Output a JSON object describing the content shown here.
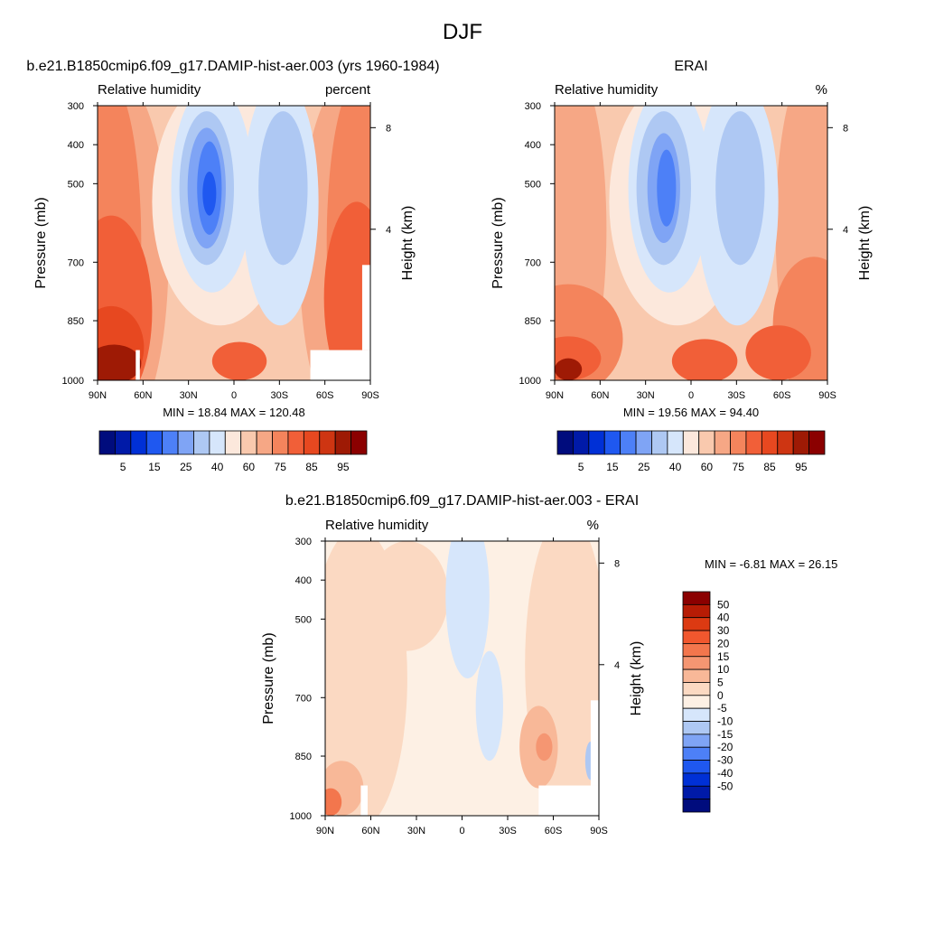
{
  "figure": {
    "title": "DJF"
  },
  "chart_data": [
    {
      "type": "heatmap",
      "title": "b.e21.B1850cmip6.f09_g17.DAMIP-hist-aer.003 (yrs 1960-1984)",
      "left_label": "Relative humidity",
      "right_label": "percent",
      "ylabel": "Pressure (mb)",
      "y2label": "Height (km)",
      "x_ticks": [
        "90N",
        "60N",
        "30N",
        "0",
        "30S",
        "60S",
        "90S"
      ],
      "y_ticks": [
        "300",
        "400",
        "500",
        "700",
        "850",
        "1000"
      ],
      "y2_ticks": [
        "8",
        "4"
      ],
      "stats": "MIN =  18.84  MAX = 120.48",
      "colorbar": {
        "orientation": "horizontal",
        "labels": [
          "5",
          "15",
          "25",
          "40",
          "60",
          "75",
          "85",
          "95"
        ],
        "colors": [
          "#000c7d",
          "#001aa8",
          "#0030d6",
          "#1f58f0",
          "#4d80f7",
          "#7fa4f5",
          "#aec8f3",
          "#d6e6fb",
          "#fce8dc",
          "#f9c9ae",
          "#f6a785",
          "#f4845c",
          "#f15f38",
          "#e74820",
          "#ce3512",
          "#9e1a05",
          "#8b0000"
        ]
      },
      "missing_data": true
    },
    {
      "type": "heatmap",
      "title": "ERAI",
      "left_label": "Relative humidity",
      "right_label": "%",
      "ylabel": "Pressure (mb)",
      "y2label": "Height (km)",
      "x_ticks": [
        "90N",
        "60N",
        "30N",
        "0",
        "30S",
        "60S",
        "90S"
      ],
      "y_ticks": [
        "300",
        "400",
        "500",
        "700",
        "850",
        "1000"
      ],
      "y2_ticks": [
        "8",
        "4"
      ],
      "stats": "MIN =  19.56  MAX =  94.40",
      "colorbar": {
        "orientation": "horizontal",
        "labels": [
          "5",
          "15",
          "25",
          "40",
          "60",
          "75",
          "85",
          "95"
        ],
        "colors": [
          "#000c7d",
          "#001aa8",
          "#0030d6",
          "#1f58f0",
          "#4d80f7",
          "#7fa4f5",
          "#aec8f3",
          "#d6e6fb",
          "#fce8dc",
          "#f9c9ae",
          "#f6a785",
          "#f4845c",
          "#f15f38",
          "#e74820",
          "#ce3512",
          "#9e1a05",
          "#8b0000"
        ]
      },
      "missing_data": false
    },
    {
      "type": "heatmap",
      "title": "b.e21.B1850cmip6.f09_g17.DAMIP-hist-aer.003 - ERAI",
      "left_label": "Relative humidity",
      "right_label": "%",
      "ylabel": "Pressure (mb)",
      "y2label": "Height (km)",
      "x_ticks": [
        "90N",
        "60N",
        "30N",
        "0",
        "30S",
        "60S",
        "90S"
      ],
      "y_ticks": [
        "300",
        "400",
        "500",
        "700",
        "850",
        "1000"
      ],
      "y2_ticks": [
        "8",
        "4"
      ],
      "stats": "MIN =  -6.81  MAX =  26.15",
      "colorbar": {
        "orientation": "vertical",
        "labels": [
          "50",
          "40",
          "30",
          "20",
          "15",
          "10",
          "5",
          "0",
          "-5",
          "-10",
          "-15",
          "-20",
          "-30",
          "-40",
          "-50"
        ],
        "colors": [
          "#8b0000",
          "#b71c05",
          "#dc3a12",
          "#f1572e",
          "#f3764d",
          "#f59672",
          "#f8b898",
          "#fbd9c2",
          "#fdf0e4",
          "#d6e6fb",
          "#aec8f3",
          "#7fa4f5",
          "#4d80f7",
          "#1f58f0",
          "#0030d6",
          "#001aa8",
          "#000c7d"
        ]
      },
      "missing_data": true
    }
  ]
}
